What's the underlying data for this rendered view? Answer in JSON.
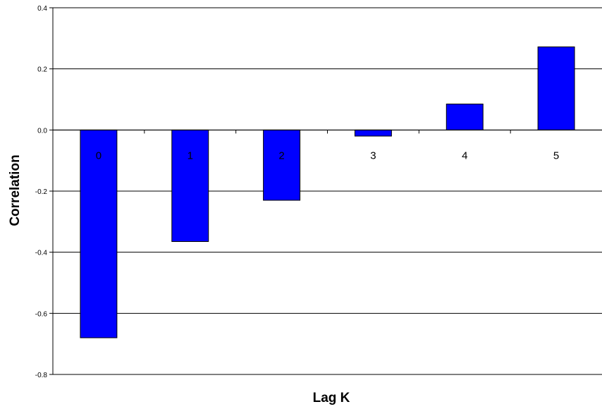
{
  "chart_data": {
    "type": "bar",
    "title": "",
    "xlabel": "Lag K",
    "ylabel": "Correlation",
    "categories": [
      "0",
      "1",
      "2",
      "3",
      "4",
      "5"
    ],
    "values": [
      -0.68,
      -0.365,
      -0.23,
      -0.02,
      0.085,
      0.272
    ],
    "ylim": [
      -0.8,
      0.4
    ],
    "yticks": [
      "0.4",
      "0.2",
      "0.0",
      "-0.2",
      "-0.4",
      "-0.6",
      "-0.8"
    ],
    "grid": true,
    "legend": "none",
    "bar_color": "#0000ff",
    "bar_edge_color": "#000000"
  }
}
